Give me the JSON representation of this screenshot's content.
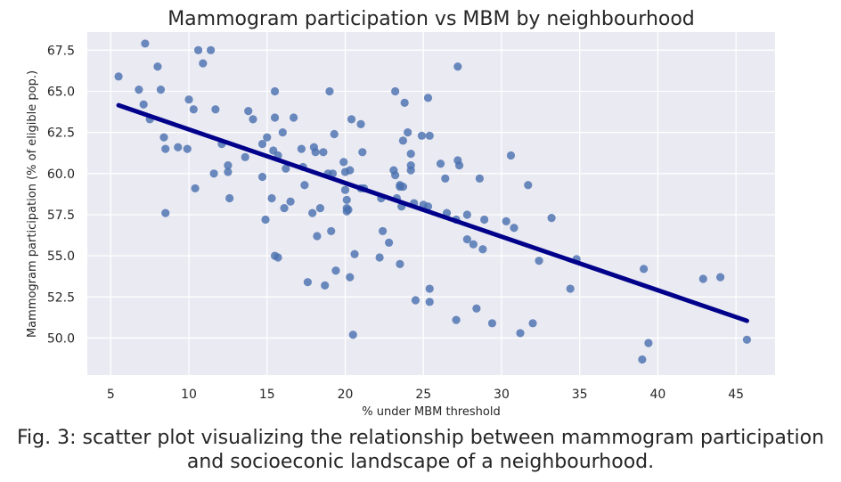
{
  "chart_data": {
    "type": "scatter",
    "title": "Mammogram participation vs MBM by neighbourhood",
    "xlabel": "% under MBM threshold",
    "ylabel": "Mammogram participation (% of eligible pop.)",
    "xlim": [
      3.5,
      47.5
    ],
    "ylim": [
      47.75,
      68.6
    ],
    "xticks": [
      5,
      10,
      15,
      20,
      25,
      30,
      35,
      40,
      45
    ],
    "xtick_labels": [
      "5",
      "10",
      "15",
      "20",
      "25",
      "30",
      "35",
      "40",
      "45"
    ],
    "yticks": [
      50.0,
      52.5,
      55.0,
      57.5,
      60.0,
      62.5,
      65.0,
      67.5
    ],
    "ytick_labels": [
      "50.0",
      "52.5",
      "55.0",
      "57.5",
      "60.0",
      "62.5",
      "65.0",
      "67.5"
    ],
    "grid": true,
    "point_color": "#4C72B0",
    "trend_color": "#00008B",
    "background_color": "#EAEAF2",
    "trendline": {
      "x": [
        5.5,
        45.7
      ],
      "y": [
        64.15,
        51.05
      ]
    },
    "points": [
      [
        5.5,
        65.9
      ],
      [
        6.8,
        65.1
      ],
      [
        7.1,
        64.2
      ],
      [
        7.2,
        67.9
      ],
      [
        7.5,
        63.3
      ],
      [
        8.0,
        66.5
      ],
      [
        8.2,
        65.1
      ],
      [
        8.4,
        62.2
      ],
      [
        8.5,
        61.5
      ],
      [
        8.5,
        57.6
      ],
      [
        9.3,
        61.6
      ],
      [
        9.9,
        61.5
      ],
      [
        10.0,
        64.5
      ],
      [
        10.3,
        63.9
      ],
      [
        10.4,
        59.1
      ],
      [
        10.6,
        67.5
      ],
      [
        10.9,
        66.7
      ],
      [
        11.4,
        67.5
      ],
      [
        11.6,
        60.0
      ],
      [
        11.7,
        63.9
      ],
      [
        12.1,
        61.8
      ],
      [
        12.5,
        60.5
      ],
      [
        12.5,
        60.1
      ],
      [
        12.6,
        58.5
      ],
      [
        13.6,
        61.0
      ],
      [
        13.8,
        63.8
      ],
      [
        14.1,
        63.3
      ],
      [
        14.7,
        61.8
      ],
      [
        14.7,
        59.8
      ],
      [
        14.9,
        57.2
      ],
      [
        15.0,
        62.2
      ],
      [
        15.3,
        58.5
      ],
      [
        15.4,
        61.4
      ],
      [
        15.5,
        63.4
      ],
      [
        15.5,
        65.0
      ],
      [
        15.5,
        55.0
      ],
      [
        15.7,
        61.1
      ],
      [
        15.7,
        54.9
      ],
      [
        16.0,
        62.5
      ],
      [
        16.1,
        57.9
      ],
      [
        16.2,
        60.3
      ],
      [
        16.5,
        58.3
      ],
      [
        16.7,
        63.4
      ],
      [
        17.2,
        61.5
      ],
      [
        17.3,
        60.4
      ],
      [
        17.4,
        59.3
      ],
      [
        17.6,
        53.4
      ],
      [
        17.9,
        57.6
      ],
      [
        18.0,
        61.6
      ],
      [
        18.1,
        61.3
      ],
      [
        18.2,
        56.2
      ],
      [
        18.4,
        57.9
      ],
      [
        18.6,
        61.3
      ],
      [
        18.7,
        53.2
      ],
      [
        18.9,
        60.0
      ],
      [
        19.0,
        65.0
      ],
      [
        19.1,
        56.5
      ],
      [
        19.2,
        60.0
      ],
      [
        19.3,
        62.4
      ],
      [
        19.4,
        54.1
      ],
      [
        19.9,
        60.7
      ],
      [
        20.0,
        60.1
      ],
      [
        20.0,
        59.0
      ],
      [
        20.1,
        58.4
      ],
      [
        20.1,
        57.9
      ],
      [
        20.1,
        57.7
      ],
      [
        20.2,
        57.8
      ],
      [
        20.3,
        60.2
      ],
      [
        20.3,
        53.7
      ],
      [
        20.4,
        63.3
      ],
      [
        20.5,
        50.2
      ],
      [
        20.6,
        55.1
      ],
      [
        21.0,
        59.1
      ],
      [
        21.0,
        63.0
      ],
      [
        21.1,
        61.3
      ],
      [
        21.2,
        59.1
      ],
      [
        22.2,
        54.9
      ],
      [
        22.3,
        58.5
      ],
      [
        22.4,
        56.5
      ],
      [
        22.8,
        55.8
      ],
      [
        23.1,
        60.2
      ],
      [
        23.2,
        65.0
      ],
      [
        23.2,
        59.9
      ],
      [
        23.3,
        58.5
      ],
      [
        23.5,
        54.5
      ],
      [
        23.5,
        59.3
      ],
      [
        23.5,
        59.2
      ],
      [
        23.6,
        58.0
      ],
      [
        23.7,
        59.2
      ],
      [
        23.7,
        62.0
      ],
      [
        23.8,
        64.3
      ],
      [
        24.0,
        62.5
      ],
      [
        24.2,
        61.2
      ],
      [
        24.2,
        60.5
      ],
      [
        24.2,
        60.2
      ],
      [
        24.4,
        58.2
      ],
      [
        24.5,
        52.3
      ],
      [
        24.9,
        62.3
      ],
      [
        25.0,
        58.1
      ],
      [
        25.3,
        64.6
      ],
      [
        25.3,
        58.0
      ],
      [
        25.4,
        62.3
      ],
      [
        25.4,
        53.0
      ],
      [
        25.4,
        52.2
      ],
      [
        26.1,
        60.6
      ],
      [
        26.4,
        59.7
      ],
      [
        26.5,
        57.6
      ],
      [
        27.1,
        57.2
      ],
      [
        27.1,
        51.1
      ],
      [
        27.2,
        60.8
      ],
      [
        27.2,
        66.5
      ],
      [
        27.3,
        60.5
      ],
      [
        27.8,
        57.5
      ],
      [
        27.8,
        56.0
      ],
      [
        28.2,
        55.7
      ],
      [
        28.4,
        51.8
      ],
      [
        28.6,
        59.7
      ],
      [
        28.8,
        55.4
      ],
      [
        28.9,
        57.2
      ],
      [
        29.4,
        50.9
      ],
      [
        30.3,
        57.1
      ],
      [
        30.6,
        61.1
      ],
      [
        30.8,
        56.7
      ],
      [
        31.2,
        50.3
      ],
      [
        31.7,
        59.3
      ],
      [
        32.0,
        50.9
      ],
      [
        32.4,
        54.7
      ],
      [
        33.2,
        57.3
      ],
      [
        34.4,
        53.0
      ],
      [
        34.8,
        54.8
      ],
      [
        39.0,
        48.7
      ],
      [
        39.1,
        54.2
      ],
      [
        39.4,
        49.7
      ],
      [
        42.9,
        53.6
      ],
      [
        44.0,
        53.7
      ],
      [
        45.7,
        49.9
      ]
    ]
  },
  "caption": {
    "line1": "Fig. 3: scatter plot visualizing the relationship between mammogram participation",
    "line2": "and socioeconic landscape of a neighbourhood."
  }
}
